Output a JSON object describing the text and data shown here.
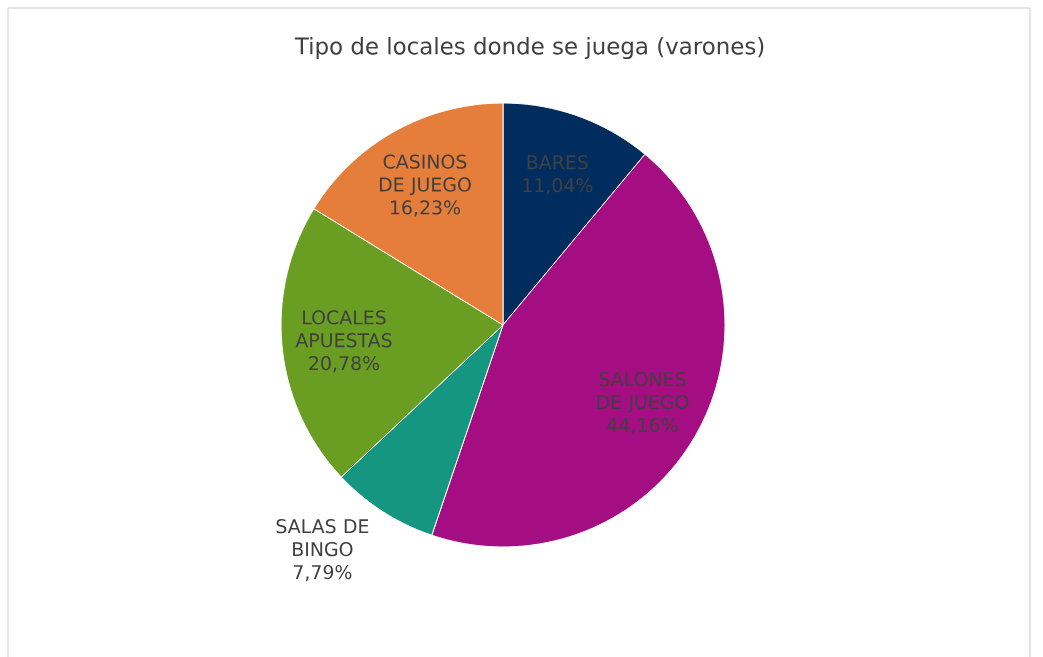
{
  "chart_data": {
    "type": "pie",
    "title": "Tipo de locales donde se juega (varones)",
    "categories": [
      "BARES",
      "SALONES DE JUEGO",
      "SALAS DE BINGO",
      "LOCALES APUESTAS",
      "CASINOS DE JUEGO"
    ],
    "values": [
      11.04,
      44.16,
      7.79,
      20.78,
      16.23
    ],
    "colors": [
      "#002d5e",
      "#a50e82",
      "#149680",
      "#6a9e22",
      "#e67e3b"
    ],
    "value_labels": [
      "11,04%",
      "44,16%",
      "7,79%",
      "20,78%",
      "16,23%"
    ]
  }
}
